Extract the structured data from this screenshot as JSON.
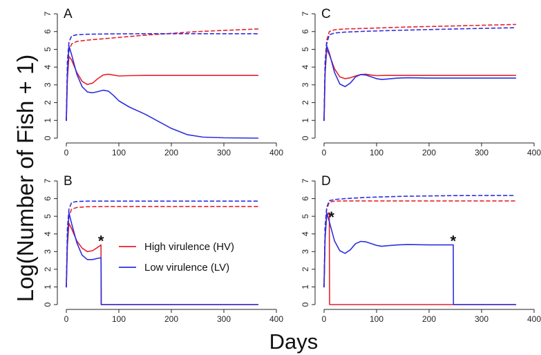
{
  "chart_data": [
    {
      "panel": "A",
      "type": "line",
      "xlim": [
        0,
        400
      ],
      "ylim": [
        0,
        7
      ],
      "xticks": [
        0,
        100,
        200,
        300,
        400
      ],
      "yticks": [
        0,
        1,
        2,
        3,
        4,
        5,
        6,
        7
      ],
      "annotations": [],
      "series": [
        {
          "color": "#e8202a",
          "style": "dashed",
          "x": [
            0,
            2,
            5,
            10,
            20,
            40,
            80,
            150,
            250,
            365
          ],
          "y": [
            1.0,
            3.8,
            4.9,
            5.3,
            5.45,
            5.52,
            5.62,
            5.8,
            6.0,
            6.15
          ]
        },
        {
          "color": "#2c2ee0",
          "style": "dashed",
          "x": [
            0,
            2,
            5,
            10,
            20,
            40,
            80,
            150,
            250,
            365
          ],
          "y": [
            1.0,
            4.3,
            5.4,
            5.75,
            5.82,
            5.85,
            5.87,
            5.88,
            5.88,
            5.88
          ]
        },
        {
          "color": "#e8202a",
          "style": "solid",
          "x": [
            0,
            2,
            5,
            10,
            20,
            30,
            40,
            50,
            60,
            70,
            80,
            90,
            100,
            120,
            150,
            200,
            250,
            300,
            365
          ],
          "y": [
            1.0,
            3.3,
            4.6,
            4.4,
            3.7,
            3.2,
            3.02,
            3.1,
            3.35,
            3.55,
            3.6,
            3.55,
            3.5,
            3.52,
            3.53,
            3.53,
            3.53,
            3.53,
            3.53
          ]
        },
        {
          "color": "#2c2ee0",
          "style": "solid",
          "x": [
            0,
            2,
            5,
            10,
            20,
            30,
            40,
            50,
            60,
            70,
            80,
            90,
            100,
            120,
            150,
            200,
            230,
            260,
            300,
            365
          ],
          "y": [
            1.0,
            3.6,
            5.2,
            4.7,
            3.6,
            2.9,
            2.6,
            2.55,
            2.62,
            2.7,
            2.65,
            2.4,
            2.1,
            1.75,
            1.35,
            0.55,
            0.2,
            0.06,
            0.02,
            0.0
          ]
        }
      ]
    },
    {
      "panel": "C",
      "type": "line",
      "xlim": [
        0,
        400
      ],
      "ylim": [
        0,
        7
      ],
      "xticks": [
        0,
        100,
        200,
        300,
        400
      ],
      "yticks": [
        0,
        1,
        2,
        3,
        4,
        5,
        6,
        7
      ],
      "annotations": [],
      "series": [
        {
          "color": "#e8202a",
          "style": "dashed",
          "x": [
            0,
            2,
            5,
            10,
            20,
            40,
            80,
            150,
            250,
            365
          ],
          "y": [
            1.0,
            4.3,
            5.5,
            6.0,
            6.1,
            6.15,
            6.18,
            6.25,
            6.32,
            6.4
          ]
        },
        {
          "color": "#2c2ee0",
          "style": "dashed",
          "x": [
            0,
            2,
            5,
            10,
            20,
            40,
            80,
            150,
            250,
            365
          ],
          "y": [
            1.0,
            4.2,
            5.3,
            5.82,
            5.92,
            5.97,
            6.02,
            6.08,
            6.15,
            6.22
          ]
        },
        {
          "color": "#e8202a",
          "style": "solid",
          "x": [
            0,
            2,
            5,
            10,
            20,
            30,
            40,
            50,
            60,
            70,
            80,
            90,
            100,
            120,
            150,
            200,
            250,
            300,
            365
          ],
          "y": [
            1.0,
            3.6,
            5.0,
            4.7,
            3.9,
            3.45,
            3.35,
            3.4,
            3.5,
            3.58,
            3.6,
            3.55,
            3.52,
            3.53,
            3.53,
            3.53,
            3.53,
            3.53,
            3.53
          ]
        },
        {
          "color": "#2c2ee0",
          "style": "solid",
          "x": [
            0,
            2,
            5,
            10,
            20,
            30,
            40,
            50,
            60,
            70,
            80,
            90,
            100,
            110,
            120,
            140,
            160,
            200,
            250,
            300,
            365
          ],
          "y": [
            1.0,
            3.7,
            5.2,
            4.8,
            3.7,
            3.05,
            2.9,
            3.1,
            3.45,
            3.58,
            3.55,
            3.45,
            3.35,
            3.3,
            3.33,
            3.38,
            3.4,
            3.38,
            3.38,
            3.38,
            3.38
          ]
        }
      ]
    },
    {
      "panel": "B",
      "type": "line",
      "xlim": [
        0,
        400
      ],
      "ylim": [
        0,
        7
      ],
      "xticks": [
        0,
        100,
        200,
        300,
        400
      ],
      "yticks": [
        0,
        1,
        2,
        3,
        4,
        5,
        6,
        7
      ],
      "annotations": [
        {
          "text": "*",
          "x": 66,
          "y": 3.7
        }
      ],
      "series": [
        {
          "color": "#e8202a",
          "style": "dashed",
          "x": [
            0,
            2,
            5,
            10,
            20,
            40,
            80,
            150,
            250,
            365
          ],
          "y": [
            1.0,
            3.9,
            5.0,
            5.4,
            5.5,
            5.54,
            5.55,
            5.55,
            5.55,
            5.55
          ]
        },
        {
          "color": "#2c2ee0",
          "style": "dashed",
          "x": [
            0,
            2,
            5,
            10,
            20,
            40,
            80,
            150,
            250,
            365
          ],
          "y": [
            1.0,
            4.3,
            5.4,
            5.78,
            5.84,
            5.86,
            5.86,
            5.86,
            5.86,
            5.86
          ]
        },
        {
          "color": "#e8202a",
          "style": "solid",
          "x": [
            0,
            2,
            5,
            10,
            20,
            30,
            40,
            50,
            60,
            65,
            66,
            66.5,
            100,
            200,
            300,
            365
          ],
          "y": [
            1.0,
            3.3,
            4.6,
            4.3,
            3.6,
            3.2,
            3.0,
            3.05,
            3.25,
            3.35,
            3.38,
            0.0,
            0.0,
            0.0,
            0.0,
            0.0
          ]
        },
        {
          "color": "#2c2ee0",
          "style": "solid",
          "x": [
            0,
            2,
            5,
            10,
            20,
            30,
            40,
            50,
            60,
            66,
            66.5,
            100,
            200,
            300,
            365
          ],
          "y": [
            1.0,
            3.6,
            5.2,
            4.6,
            3.5,
            2.8,
            2.55,
            2.55,
            2.62,
            2.65,
            0.0,
            0.0,
            0.0,
            0.0,
            0.0
          ]
        }
      ]
    },
    {
      "panel": "D",
      "type": "line",
      "xlim": [
        0,
        400
      ],
      "ylim": [
        0,
        7
      ],
      "xticks": [
        0,
        100,
        200,
        300,
        400
      ],
      "yticks": [
        0,
        1,
        2,
        3,
        4,
        5,
        6,
        7
      ],
      "annotations": [
        {
          "text": "*",
          "x": 14,
          "y": 5.05
        },
        {
          "text": "*",
          "x": 246,
          "y": 3.7
        }
      ],
      "series": [
        {
          "color": "#e8202a",
          "style": "dashed",
          "x": [
            0,
            2,
            5,
            10,
            20,
            40,
            80,
            150,
            250,
            365
          ],
          "y": [
            1.0,
            4.3,
            5.4,
            5.8,
            5.86,
            5.87,
            5.87,
            5.87,
            5.87,
            5.87
          ]
        },
        {
          "color": "#2c2ee0",
          "style": "dashed",
          "x": [
            0,
            2,
            5,
            10,
            20,
            40,
            80,
            150,
            250,
            365
          ],
          "y": [
            1.0,
            4.4,
            5.5,
            5.88,
            5.95,
            6.0,
            6.07,
            6.13,
            6.17,
            6.18
          ]
        },
        {
          "color": "#e8202a",
          "style": "solid",
          "x": [
            0,
            2,
            5,
            9,
            10,
            10.5,
            50,
            100,
            200,
            300,
            365
          ],
          "y": [
            1.0,
            3.8,
            5.0,
            5.2,
            5.2,
            0.0,
            0.0,
            0.0,
            0.0,
            0.0,
            0.0
          ]
        },
        {
          "color": "#2c2ee0",
          "style": "solid",
          "x": [
            0,
            2,
            5,
            10,
            20,
            30,
            40,
            50,
            60,
            70,
            80,
            90,
            100,
            110,
            120,
            140,
            160,
            200,
            245,
            246,
            246.5,
            300,
            365
          ],
          "y": [
            1.0,
            3.7,
            5.2,
            4.7,
            3.6,
            3.05,
            2.9,
            3.1,
            3.45,
            3.58,
            3.55,
            3.45,
            3.35,
            3.3,
            3.33,
            3.38,
            3.4,
            3.38,
            3.38,
            3.38,
            0.0,
            0.0,
            0.0
          ]
        }
      ]
    }
  ],
  "legend": {
    "items": [
      {
        "label": "High virulence (HV)",
        "color": "#e8202a"
      },
      {
        "label": "Low virulence (LV)",
        "color": "#2c2ee0"
      }
    ]
  },
  "axes": {
    "ylabel": "Log(Number of Fish + 1)",
    "xlabel": "Days"
  }
}
